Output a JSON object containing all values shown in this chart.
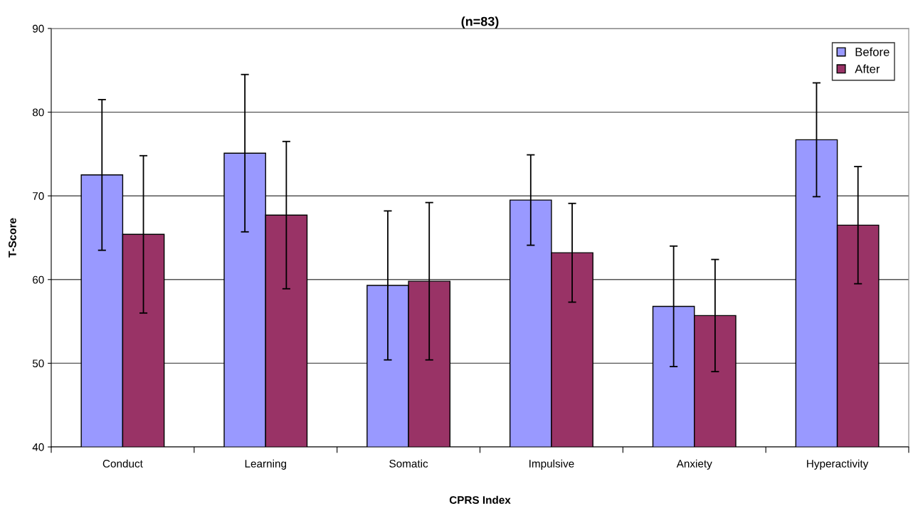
{
  "chart_data": {
    "type": "bar",
    "title": "(n=83)",
    "xlabel": "CPRS Index",
    "ylabel": "T-Score",
    "categories": [
      "Conduct",
      "Learning",
      "Somatic",
      "Impulsive",
      "Anxiety",
      "Hyperactivity"
    ],
    "series": [
      {
        "name": "Before",
        "color": "#9999ff",
        "values": [
          72.5,
          75.1,
          59.3,
          69.5,
          56.8,
          76.7
        ],
        "errors": [
          9.0,
          9.4,
          8.9,
          5.4,
          7.2,
          6.8
        ]
      },
      {
        "name": "After",
        "color": "#993366",
        "values": [
          65.4,
          67.7,
          59.8,
          63.2,
          55.7,
          66.5
        ],
        "errors": [
          9.4,
          8.8,
          9.4,
          5.9,
          6.7,
          7.0
        ]
      }
    ],
    "ylim": [
      40,
      90
    ],
    "yticks": [
      40,
      50,
      60,
      70,
      80,
      90
    ],
    "grid": "y",
    "legend": "top right"
  }
}
